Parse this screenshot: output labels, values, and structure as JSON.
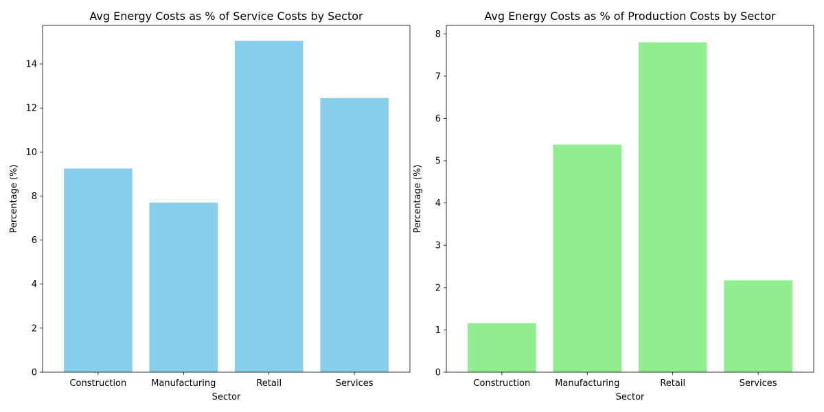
{
  "chart_data": [
    {
      "type": "bar",
      "title": "Avg Energy Costs as % of Service Costs by Sector",
      "xlabel": "Sector",
      "ylabel": "Percentage (%)",
      "categories": [
        "Construction",
        "Manufacturing",
        "Retail",
        "Services"
      ],
      "values": [
        9.25,
        7.7,
        15.05,
        12.45
      ],
      "ylim": [
        0,
        15.75
      ],
      "yticks": [
        0,
        2,
        4,
        6,
        8,
        10,
        12,
        14
      ],
      "bar_color": "#87ceeb",
      "grid": false,
      "legend": "none"
    },
    {
      "type": "bar",
      "title": "Avg Energy Costs as % of Production Costs by Sector",
      "xlabel": "Sector",
      "ylabel": "Percentage (%)",
      "categories": [
        "Construction",
        "Manufacturing",
        "Retail",
        "Services"
      ],
      "values": [
        1.16,
        5.38,
        7.8,
        2.17
      ],
      "ylim": [
        0,
        8.2
      ],
      "yticks": [
        0,
        1,
        2,
        3,
        4,
        5,
        6,
        7,
        8
      ],
      "bar_color": "#90ee90",
      "grid": false,
      "legend": "none"
    }
  ]
}
